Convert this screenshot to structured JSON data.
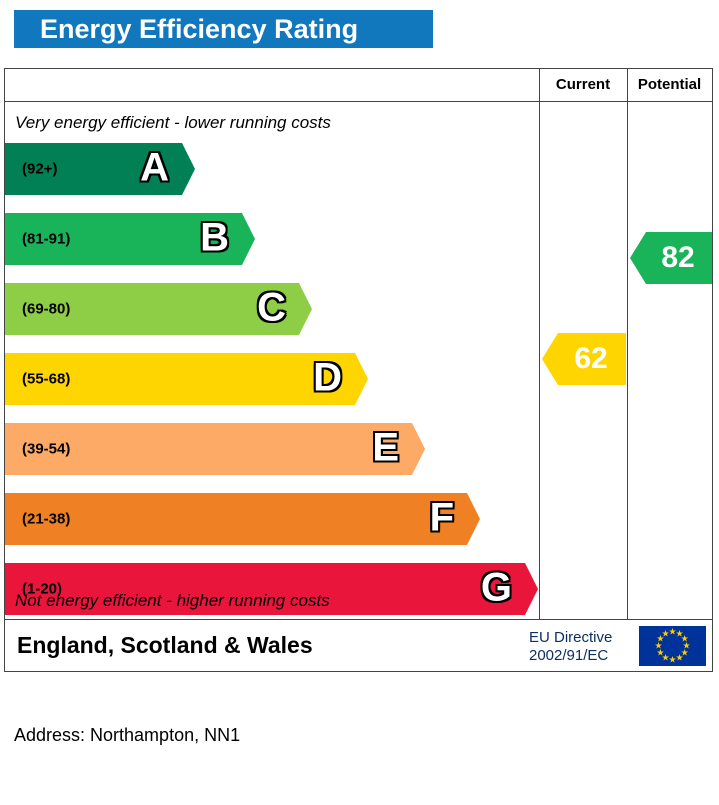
{
  "title": "Energy Efficiency Rating",
  "columns": {
    "current": "Current",
    "potential": "Potential"
  },
  "notes": {
    "top": "Very energy efficient - lower running costs",
    "bottom": "Not energy efficient - higher running costs"
  },
  "bands": [
    {
      "letter": "A",
      "range": "(92+)",
      "color": "#008054"
    },
    {
      "letter": "B",
      "range": "(81-91)",
      "color": "#19b459"
    },
    {
      "letter": "C",
      "range": "(69-80)",
      "color": "#8dce46"
    },
    {
      "letter": "D",
      "range": "(55-68)",
      "color": "#ffd500"
    },
    {
      "letter": "E",
      "range": "(39-54)",
      "color": "#fcaa65"
    },
    {
      "letter": "F",
      "range": "(21-38)",
      "color": "#ef8023"
    },
    {
      "letter": "G",
      "range": "(1-20)",
      "color": "#e9153b"
    }
  ],
  "ratings": {
    "current": {
      "value": "62",
      "color": "#ffd500",
      "band": "D"
    },
    "potential": {
      "value": "82",
      "color": "#19b459",
      "band": "B"
    }
  },
  "footer": {
    "region": "England, Scotland & Wales",
    "directive_line1": "EU Directive",
    "directive_line2": "2002/91/EC"
  },
  "address": "Address: Northampton, NN1",
  "accent_colors": {
    "header_blue": "#1278be",
    "eu_flag_blue": "#003399",
    "eu_star_yellow": "#ffcc00"
  },
  "chart_data": {
    "type": "bar",
    "title": "Energy Efficiency Rating",
    "categories": [
      "A",
      "B",
      "C",
      "D",
      "E",
      "F",
      "G"
    ],
    "band_ranges": [
      "92+",
      "81-91",
      "69-80",
      "55-68",
      "39-54",
      "21-38",
      "1-20"
    ],
    "band_colors": [
      "#008054",
      "#19b459",
      "#8dce46",
      "#ffd500",
      "#fcaa65",
      "#ef8023",
      "#e9153b"
    ],
    "series": [
      {
        "name": "Current",
        "values": [
          62
        ]
      },
      {
        "name": "Potential",
        "values": [
          82
        ]
      }
    ],
    "current_rating": 62,
    "current_band": "D",
    "potential_rating": 82,
    "potential_band": "B",
    "scale": [
      1,
      100
    ],
    "legend_position": "none",
    "grid": false
  }
}
